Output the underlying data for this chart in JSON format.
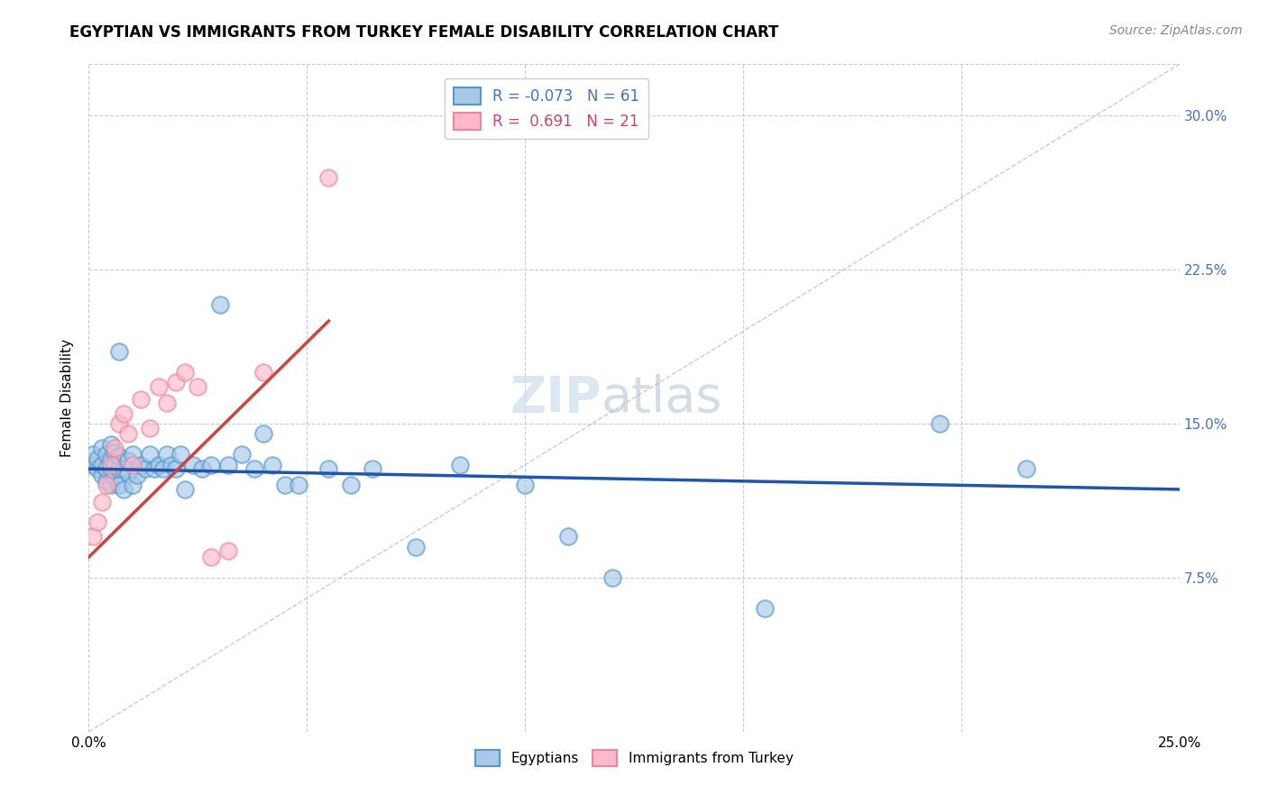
{
  "title": "EGYPTIAN VS IMMIGRANTS FROM TURKEY FEMALE DISABILITY CORRELATION CHART",
  "source": "Source: ZipAtlas.com",
  "ylabel": "Female Disability",
  "xlim": [
    0.0,
    0.25
  ],
  "ylim": [
    0.0,
    0.325
  ],
  "yticks": [
    0.075,
    0.15,
    0.225,
    0.3
  ],
  "ytick_labels": [
    "7.5%",
    "15.0%",
    "22.5%",
    "30.0%"
  ],
  "xticks": [
    0.0,
    0.05,
    0.1,
    0.15,
    0.2,
    0.25
  ],
  "xtick_labels": [
    "0.0%",
    "",
    "",
    "",
    "",
    "25.0%"
  ],
  "legend_R1": "R = -0.073   N = 61",
  "legend_R2": "R =  0.691   N = 21",
  "watermark_zip": "ZIP",
  "watermark_atlas": "atlas",
  "egypt_x": [
    0.001,
    0.001,
    0.002,
    0.002,
    0.003,
    0.003,
    0.003,
    0.004,
    0.004,
    0.004,
    0.005,
    0.005,
    0.005,
    0.005,
    0.006,
    0.006,
    0.006,
    0.007,
    0.007,
    0.007,
    0.007,
    0.008,
    0.008,
    0.009,
    0.009,
    0.01,
    0.01,
    0.011,
    0.012,
    0.013,
    0.014,
    0.015,
    0.016,
    0.017,
    0.018,
    0.019,
    0.02,
    0.021,
    0.022,
    0.024,
    0.026,
    0.028,
    0.03,
    0.032,
    0.035,
    0.038,
    0.04,
    0.042,
    0.045,
    0.048,
    0.055,
    0.06,
    0.065,
    0.075,
    0.085,
    0.1,
    0.11,
    0.12,
    0.155,
    0.195,
    0.215
  ],
  "egypt_y": [
    0.13,
    0.135,
    0.128,
    0.133,
    0.125,
    0.13,
    0.138,
    0.122,
    0.128,
    0.135,
    0.12,
    0.128,
    0.133,
    0.14,
    0.124,
    0.13,
    0.136,
    0.12,
    0.128,
    0.134,
    0.185,
    0.118,
    0.128,
    0.126,
    0.132,
    0.12,
    0.135,
    0.125,
    0.13,
    0.128,
    0.135,
    0.128,
    0.13,
    0.128,
    0.135,
    0.13,
    0.128,
    0.135,
    0.118,
    0.13,
    0.128,
    0.13,
    0.208,
    0.13,
    0.135,
    0.128,
    0.145,
    0.13,
    0.12,
    0.12,
    0.128,
    0.12,
    0.128,
    0.09,
    0.13,
    0.12,
    0.095,
    0.075,
    0.06,
    0.15,
    0.128
  ],
  "turkey_x": [
    0.001,
    0.002,
    0.003,
    0.004,
    0.005,
    0.006,
    0.007,
    0.008,
    0.009,
    0.01,
    0.012,
    0.014,
    0.016,
    0.018,
    0.02,
    0.022,
    0.025,
    0.028,
    0.032,
    0.04,
    0.055
  ],
  "turkey_y": [
    0.095,
    0.102,
    0.112,
    0.12,
    0.13,
    0.138,
    0.15,
    0.155,
    0.145,
    0.13,
    0.162,
    0.148,
    0.168,
    0.16,
    0.17,
    0.175,
    0.168,
    0.085,
    0.088,
    0.175,
    0.27
  ],
  "blue_line_x": [
    0.0,
    0.25
  ],
  "blue_line_y": [
    0.128,
    0.118
  ],
  "pink_line_x": [
    0.0,
    0.055
  ],
  "pink_line_y": [
    0.085,
    0.2
  ],
  "diag_line_color": "#ddaaaa",
  "blue_line_color": "#2255aa",
  "pink_line_color": "#cc4444",
  "color_egypt_face": "#a8c8e8",
  "color_egypt_edge": "#5599cc",
  "color_turkey_face": "#ffb8cc",
  "color_turkey_edge": "#ee8899",
  "title_fontsize": 12,
  "source_fontsize": 10,
  "axis_label_fontsize": 11,
  "tick_fontsize": 11,
  "legend_fontsize": 12,
  "watermark_fontsize": 40
}
